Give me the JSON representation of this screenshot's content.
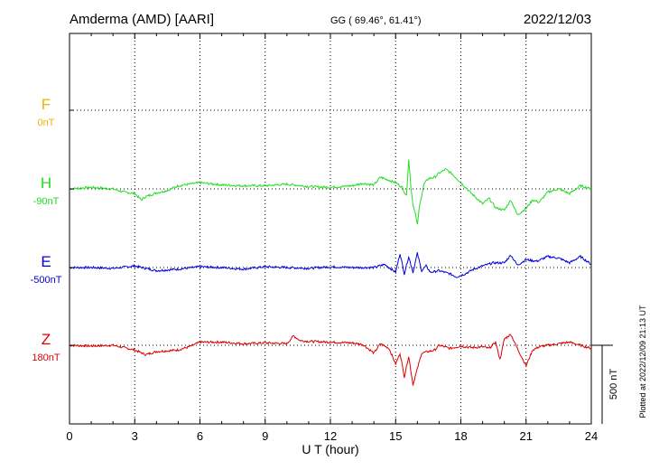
{
  "header": {
    "station": "Amderma (AMD)  [AARI]",
    "coords": "GG ( 69.46°,  61.41°)",
    "date": "2022/12/03"
  },
  "footer_note": "Plotted at 2022/12/09 21:13 UT",
  "colors": {
    "F": "#f0b400",
    "H": "#22dd22",
    "E": "#0000dd",
    "Z": "#dd0000",
    "axis": "#000000"
  },
  "chart_data": {
    "type": "line",
    "xlabel": "U T (hour)",
    "xlim": [
      0,
      24
    ],
    "xticks": [
      0,
      3,
      6,
      9,
      12,
      15,
      18,
      21,
      24
    ],
    "scale_bar": "500 nT",
    "scale_bar_nT": 500,
    "series": [
      {
        "name": "F",
        "offset_label": "0nT",
        "baseline_hours": [],
        "x": [],
        "y": []
      },
      {
        "name": "H",
        "offset_label": "-90nT",
        "x": [
          0,
          1,
          2,
          2.5,
          3,
          3.3,
          3.5,
          4,
          4.5,
          5,
          5.5,
          6,
          7,
          8,
          9,
          10,
          11,
          12,
          13,
          13.5,
          14,
          14.3,
          14.6,
          15,
          15.3,
          15.5,
          15.6,
          15.7,
          15.8,
          15.9,
          16,
          16.1,
          16.3,
          16.5,
          16.8,
          17,
          17.3,
          17.6,
          18,
          18.5,
          19,
          19.3,
          19.6,
          20,
          20.3,
          20.6,
          21,
          21.3,
          21.6,
          22,
          22.5,
          23,
          23.5,
          24
        ],
        "y": [
          0,
          10,
          0,
          -20,
          -30,
          -70,
          -50,
          -25,
          -10,
          20,
          30,
          40,
          25,
          20,
          20,
          30,
          15,
          10,
          20,
          35,
          25,
          75,
          60,
          40,
          10,
          -45,
          190,
          20,
          -100,
          -150,
          -230,
          -110,
          30,
          65,
          75,
          100,
          125,
          95,
          40,
          -30,
          -95,
          -60,
          -120,
          -135,
          -70,
          -165,
          -125,
          -70,
          -85,
          -20,
          0,
          -30,
          20,
          0
        ]
      },
      {
        "name": "E",
        "offset_label": "-500nT",
        "x": [
          0,
          1,
          2,
          3,
          3.5,
          4,
          5,
          6,
          7,
          8,
          9,
          10,
          11,
          12,
          13,
          14,
          14.5,
          15,
          15.2,
          15.4,
          15.6,
          15.8,
          16,
          16.2,
          16.4,
          16.6,
          17,
          17.5,
          17.8,
          18.2,
          18.6,
          19,
          19.5,
          20,
          20.3,
          20.6,
          21,
          21.5,
          22,
          22.5,
          23,
          23.5,
          24
        ],
        "y": [
          0,
          0,
          -5,
          10,
          -5,
          -20,
          -10,
          5,
          0,
          -10,
          5,
          0,
          -5,
          5,
          0,
          0,
          20,
          -30,
          90,
          -40,
          70,
          -30,
          90,
          -20,
          10,
          -30,
          -20,
          -40,
          -60,
          -40,
          -10,
          10,
          30,
          30,
          80,
          15,
          50,
          40,
          70,
          60,
          30,
          70,
          20
        ]
      },
      {
        "name": "Z",
        "offset_label": "180nT",
        "x": [
          0,
          1,
          2,
          3,
          3.5,
          4,
          5,
          5.5,
          6,
          7,
          8,
          9,
          10,
          10.3,
          10.6,
          11,
          12,
          13,
          13.5,
          14,
          14.3,
          14.7,
          15,
          15.2,
          15.4,
          15.6,
          15.8,
          16,
          16.2,
          16.5,
          16.8,
          17,
          17.5,
          18,
          18.5,
          19,
          19.3,
          19.6,
          19.8,
          20,
          20.3,
          20.6,
          21,
          21.3,
          21.6,
          22,
          23,
          24
        ],
        "y": [
          0,
          -5,
          0,
          -30,
          -60,
          -40,
          -30,
          -10,
          20,
          20,
          10,
          15,
          10,
          60,
          30,
          25,
          20,
          15,
          5,
          -50,
          10,
          -20,
          -120,
          -50,
          -200,
          -70,
          -250,
          -150,
          -50,
          -40,
          -30,
          0,
          -20,
          -5,
          -15,
          -10,
          -20,
          20,
          -90,
          40,
          70,
          -20,
          -130,
          -30,
          -10,
          0,
          20,
          -20
        ]
      }
    ]
  }
}
